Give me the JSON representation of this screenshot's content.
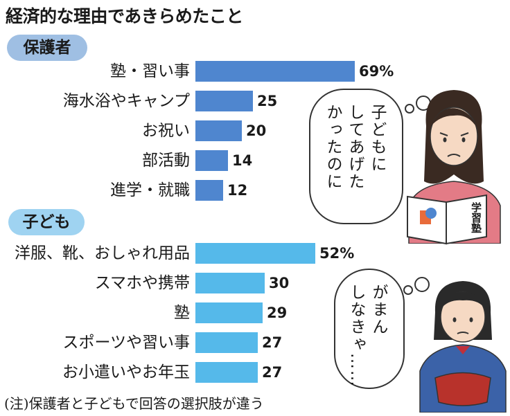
{
  "title": "経済的な理由であきらめたこと",
  "note": "(注)保護者と子どもで回答の選択肢が違う",
  "colors": {
    "parent_bar": "#4f86cf",
    "child_bar": "#55b9ea",
    "parent_pill": "#9fbfe3",
    "child_pill": "#9fd3f1"
  },
  "speech": {
    "parent": "子どもに\nしてあげた\nかったのに",
    "child": "がまん\nしなきゃ……"
  },
  "book_label": "学習塾",
  "chart_data": [
    {
      "type": "bar",
      "group": "保護者",
      "unit": "%",
      "categories": [
        "塾・習い事",
        "海水浴やキャンプ",
        "お祝い",
        "部活動",
        "進学・就職"
      ],
      "values": [
        69,
        25,
        20,
        14,
        12
      ],
      "value_labels": [
        "69%",
        "25",
        "20",
        "14",
        "12"
      ]
    },
    {
      "type": "bar",
      "group": "子ども",
      "unit": "%",
      "categories": [
        "洋服、靴、おしゃれ用品",
        "スマホや携帯",
        "塾",
        "スポーツや習い事",
        "お小遣いやお年玉"
      ],
      "values": [
        52,
        30,
        29,
        27,
        27
      ],
      "value_labels": [
        "52%",
        "30",
        "29",
        "27",
        "27"
      ]
    }
  ]
}
